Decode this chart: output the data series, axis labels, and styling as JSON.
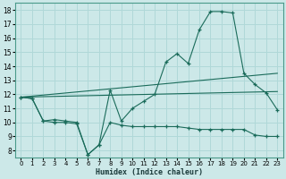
{
  "bg_color": "#cce8e8",
  "line_color": "#1a6b5a",
  "grid_color": "#b0d8d8",
  "xlabel": "Humidex (Indice chaleur)",
  "xlim": [
    -0.5,
    23.5
  ],
  "ylim": [
    7.5,
    18.5
  ],
  "yticks": [
    8,
    9,
    10,
    11,
    12,
    13,
    14,
    15,
    16,
    17,
    18
  ],
  "xticks": [
    0,
    1,
    2,
    3,
    4,
    5,
    6,
    7,
    8,
    9,
    10,
    11,
    12,
    13,
    14,
    15,
    16,
    17,
    18,
    19,
    20,
    21,
    22,
    23
  ],
  "series": [
    {
      "x": [
        0,
        1,
        2,
        3,
        4,
        5,
        6,
        7,
        8,
        9,
        10,
        11,
        12,
        13,
        14,
        15,
        16,
        17,
        18,
        19,
        20,
        21,
        22,
        23
      ],
      "y": [
        11.8,
        11.7,
        10.1,
        10.2,
        10.1,
        10.0,
        7.7,
        8.4,
        12.3,
        10.1,
        11.0,
        11.5,
        12.0,
        14.3,
        14.9,
        14.2,
        16.6,
        17.9,
        17.9,
        17.8,
        13.5,
        12.7,
        12.1,
        10.9
      ],
      "marker": true
    },
    {
      "x": [
        0,
        1,
        2,
        3,
        4,
        5,
        6,
        7,
        8,
        9,
        10,
        11,
        12,
        13,
        14,
        15,
        16,
        17,
        18,
        19,
        20,
        21,
        22,
        23
      ],
      "y": [
        11.8,
        11.7,
        10.1,
        10.0,
        10.0,
        9.9,
        7.7,
        8.4,
        10.0,
        9.8,
        9.7,
        9.7,
        9.7,
        9.7,
        9.7,
        9.6,
        9.5,
        9.5,
        9.5,
        9.5,
        9.5,
        9.1,
        9.0,
        9.0
      ],
      "marker": true
    },
    {
      "x": [
        0,
        23
      ],
      "y": [
        11.8,
        13.5
      ],
      "marker": false
    },
    {
      "x": [
        0,
        23
      ],
      "y": [
        11.8,
        12.2
      ],
      "marker": false
    }
  ]
}
